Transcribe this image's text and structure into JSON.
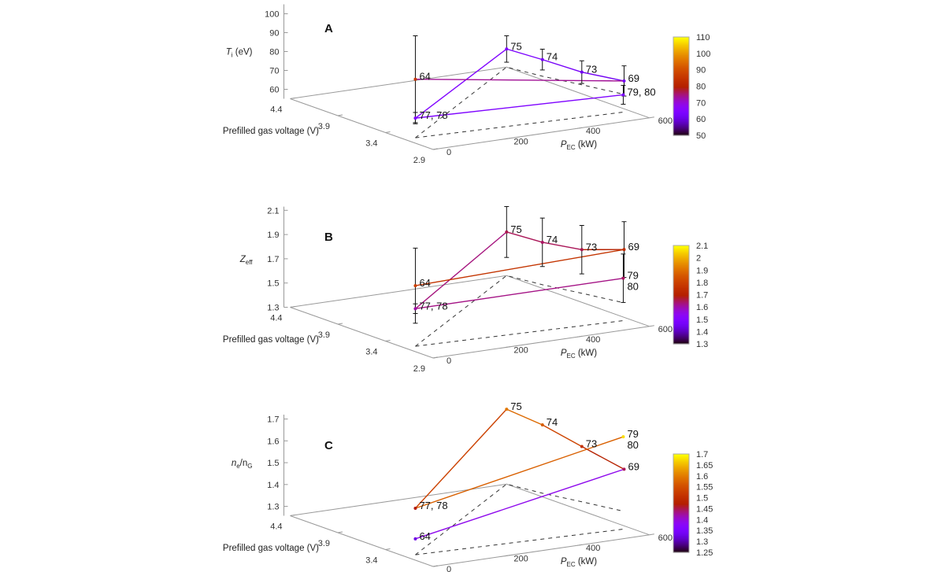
{
  "chart_data": [
    {
      "type": "line",
      "panel_label": "A",
      "x_label": {
        "main": "P",
        "sub": "EC",
        "rest": " (kW)"
      },
      "y_label": "Prefilled gas voltage (V)",
      "z_label": {
        "main": "T",
        "sub": "i",
        "rest": " (eV)"
      },
      "x_ticks": [
        "0",
        "200",
        "400",
        "600"
      ],
      "y_ticks": [
        "4.4",
        "3.9",
        "3.4",
        "2.9"
      ],
      "z_ticks": [
        "60",
        "70",
        "80",
        "90",
        "100"
      ],
      "xlim": [
        0,
        600
      ],
      "ylim": [
        2.9,
        4.4
      ],
      "zlim": [
        55,
        105
      ],
      "colorbar": {
        "range": [
          50,
          110
        ],
        "ticks": [
          "50",
          "60",
          "70",
          "80",
          "90",
          "100",
          "110"
        ]
      },
      "points": [
        {
          "id": "64",
          "labels": [
            "64"
          ],
          "P_EC": 30,
          "voltage": 3.2,
          "value": 86,
          "error": 23
        },
        {
          "id": "77",
          "labels": [
            "77, 78"
          ],
          "P_EC": 30,
          "voltage": 3.2,
          "value": 65.4,
          "error": 3
        },
        {
          "id": "75",
          "labels": [
            "75"
          ],
          "P_EC": 600,
          "voltage": 4.4,
          "value": 64.6,
          "error": 7
        },
        {
          "id": "74",
          "labels": [
            "74"
          ],
          "P_EC": 620,
          "voltage": 4.1,
          "value": 63.8,
          "error": 5.5
        },
        {
          "id": "73",
          "labels": [
            "73"
          ],
          "P_EC": 650,
          "voltage": 3.8,
          "value": 61.7,
          "error": 6
        },
        {
          "id": "69",
          "labels": [
            "69"
          ],
          "P_EC": 680,
          "voltage": 3.47,
          "value": 62.1,
          "error": 8
        },
        {
          "id": "79",
          "labels": [
            "79, 80"
          ],
          "P_EC": 580,
          "voltage": 3.1,
          "value": 64.2,
          "error": 5
        }
      ],
      "connections": [
        [
          "77",
          "75",
          "74",
          "73",
          "69"
        ],
        [
          "64",
          "69"
        ],
        [
          "77",
          "79"
        ]
      ]
    },
    {
      "type": "line",
      "panel_label": "B",
      "x_label": {
        "main": "P",
        "sub": "EC",
        "rest": " (kW)"
      },
      "y_label": "Prefilled gas voltage (V)",
      "z_label": {
        "main": "Z",
        "sub": "eff",
        "rest": ""
      },
      "x_ticks": [
        "0",
        "200",
        "400",
        "600"
      ],
      "y_ticks": [
        "4.4",
        "3.9",
        "3.4",
        "2.9"
      ],
      "z_ticks": [
        "1.3",
        "1.5",
        "1.7",
        "1.9",
        "2.1"
      ],
      "xlim": [
        0,
        600
      ],
      "ylim": [
        2.9,
        4.4
      ],
      "zlim": [
        1.3,
        2.13
      ],
      "colorbar": {
        "range": [
          1.3,
          2.1
        ],
        "ticks": [
          "1.3",
          "1.4",
          "1.5",
          "1.6",
          "1.7",
          "1.8",
          "1.9",
          "2",
          "2.1"
        ]
      },
      "points": [
        {
          "id": "64",
          "labels": [
            "64"
          ],
          "P_EC": 30,
          "voltage": 3.2,
          "value": 1.8,
          "error": 0.31
        },
        {
          "id": "77",
          "labels": [
            "77, 78"
          ],
          "P_EC": 30,
          "voltage": 3.2,
          "value": 1.61,
          "error": 0.04
        },
        {
          "id": "75",
          "labels": [
            "75"
          ],
          "P_EC": 600,
          "voltage": 4.4,
          "value": 1.66,
          "error": 0.21
        },
        {
          "id": "74",
          "labels": [
            "74"
          ],
          "P_EC": 620,
          "voltage": 4.1,
          "value": 1.65,
          "error": 0.2
        },
        {
          "id": "73",
          "labels": [
            "73"
          ],
          "P_EC": 650,
          "voltage": 3.8,
          "value": 1.66,
          "error": 0.2
        },
        {
          "id": "69",
          "labels": [
            "69"
          ],
          "P_EC": 680,
          "voltage": 3.47,
          "value": 1.74,
          "error": 0.23
        },
        {
          "id": "79",
          "labels": [
            "79",
            "80"
          ],
          "P_EC": 580,
          "voltage": 3.1,
          "value": 1.65,
          "error": 0.2
        }
      ],
      "connections": [
        [
          "77",
          "75",
          "74",
          "73",
          "69"
        ],
        [
          "64",
          "69"
        ],
        [
          "77",
          "79"
        ]
      ]
    },
    {
      "type": "line",
      "panel_label": "C",
      "x_label": {
        "main": "P",
        "sub": "EC",
        "rest": " (kW)"
      },
      "y_label": "Prefilled gas voltage (V)",
      "z_label": {
        "main": "n",
        "sub": "e",
        "rest": "/n",
        "sub2": "G"
      },
      "x_ticks": [
        "0",
        "200",
        "400",
        "600"
      ],
      "y_ticks": [
        "4.4",
        "3.9",
        "3.4",
        "2.9"
      ],
      "z_ticks": [
        "1.3",
        "1.4",
        "1.5",
        "1.6",
        "1.7"
      ],
      "xlim": [
        0,
        600
      ],
      "ylim": [
        2.9,
        4.4
      ],
      "zlim": [
        1.257,
        1.72
      ],
      "colorbar": {
        "range": [
          1.25,
          1.7
        ],
        "ticks": [
          "1.25",
          "1.3",
          "1.35",
          "1.4",
          "1.45",
          "1.5",
          "1.55",
          "1.6",
          "1.65",
          "1.7"
        ]
      },
      "points": [
        {
          "id": "64",
          "labels": [
            "64"
          ],
          "P_EC": 30,
          "voltage": 3.2,
          "value": 1.33
        },
        {
          "id": "77",
          "labels": [
            "77, 78"
          ],
          "P_EC": 30,
          "voltage": 3.2,
          "value": 1.47
        },
        {
          "id": "75",
          "labels": [
            "75"
          ],
          "P_EC": 600,
          "voltage": 4.4,
          "value": 1.6
        },
        {
          "id": "74",
          "labels": [
            "74"
          ],
          "P_EC": 620,
          "voltage": 4.1,
          "value": 1.57
        },
        {
          "id": "73",
          "labels": [
            "73"
          ],
          "P_EC": 650,
          "voltage": 3.8,
          "value": 1.51
        },
        {
          "id": "69",
          "labels": [
            "69"
          ],
          "P_EC": 680,
          "voltage": 3.47,
          "value": 1.45
        },
        {
          "id": "79",
          "labels": [
            "79",
            "80"
          ],
          "P_EC": 580,
          "voltage": 3.1,
          "value": 1.68
        }
      ],
      "connections": [
        [
          "77",
          "75",
          "74",
          "73",
          "69"
        ],
        [
          "64",
          "69"
        ],
        [
          "77",
          "79"
        ]
      ]
    }
  ]
}
